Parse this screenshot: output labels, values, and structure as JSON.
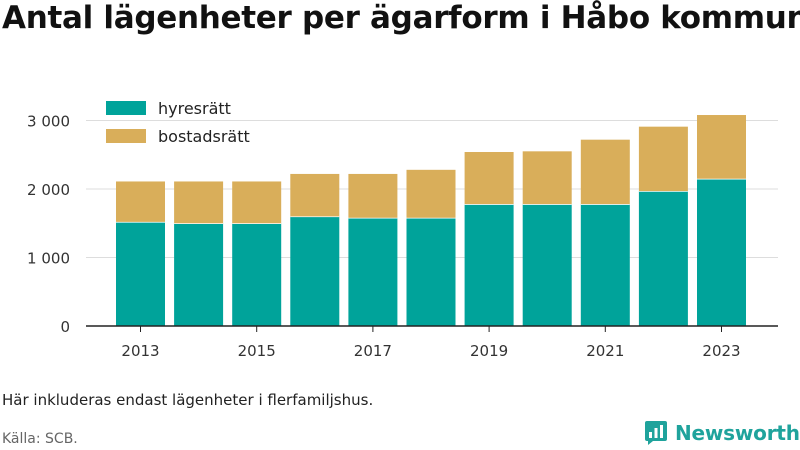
{
  "header": {
    "title": "Antal lägenheter per ägarform i Håbo kommun"
  },
  "footer": {
    "note": "Här inkluderas endast lägenheter i flerfamiljshus.",
    "source": "Källa: SCB.",
    "brand": "Newsworthy",
    "brand_color": "#1fa39c"
  },
  "chart_data": {
    "type": "bar",
    "stacked": true,
    "title": "Antal lägenheter per ägarform i Håbo kommun",
    "xlabel": "",
    "ylabel": "",
    "categories": [
      "2013",
      "2014",
      "2015",
      "2016",
      "2017",
      "2018",
      "2019",
      "2020",
      "2021",
      "2022",
      "2023"
    ],
    "x_tick_labels": [
      "2013",
      "2015",
      "2017",
      "2019",
      "2021",
      "2023"
    ],
    "y_ticks": [
      0,
      1000,
      2000,
      3000
    ],
    "y_tick_labels": [
      "0",
      "1 000",
      "2 000",
      "3 000"
    ],
    "ylim": [
      0,
      3200
    ],
    "grid": true,
    "legend_position": "top-left",
    "series": [
      {
        "name": "hyresrätt",
        "color": "#00a39a",
        "values": [
          1520,
          1500,
          1500,
          1600,
          1580,
          1580,
          1780,
          1780,
          1780,
          1970,
          2150
        ]
      },
      {
        "name": "bostadsrätt",
        "color": "#d9ae5a",
        "values": [
          590,
          610,
          610,
          620,
          640,
          700,
          760,
          770,
          940,
          940,
          930
        ]
      }
    ]
  }
}
